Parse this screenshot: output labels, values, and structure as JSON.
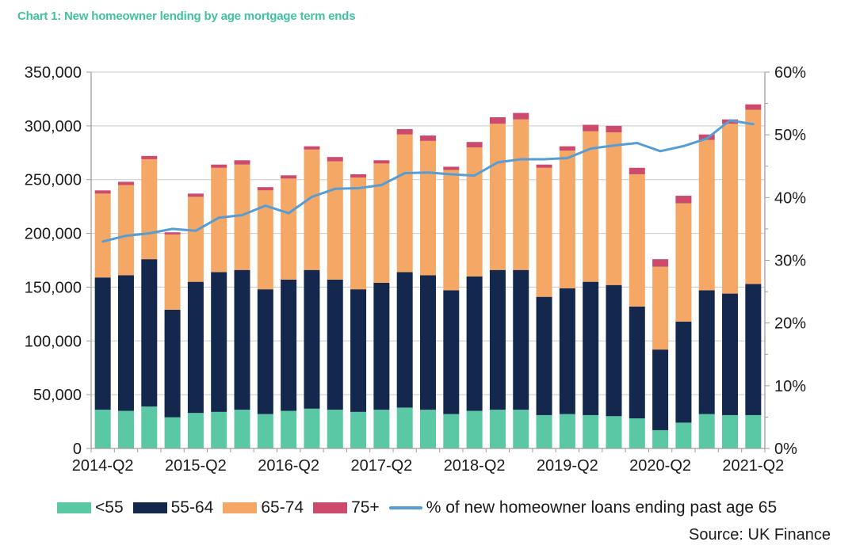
{
  "page": {
    "title": "Chart 1: New homeowner lending by age mortgage term ends",
    "source": "Source: UK Finance"
  },
  "colors": {
    "title_text": "#3fc2a2",
    "axis_text": "#1b1b1b",
    "grid_line": "#c9c9c9",
    "axis_line": "#9e9e9e"
  },
  "legend": {
    "items": [
      {
        "label": "<55"
      },
      {
        "label": "55-64"
      },
      {
        "label": "65-74"
      },
      {
        "label": "75+"
      },
      {
        "label": "% of new homeowner loans ending past age 65"
      }
    ]
  },
  "chart_data": {
    "type": "bar",
    "stacked": true,
    "line_overlay": true,
    "title": "Chart 1: New homeowner lending by age mortgage term ends",
    "xlabel": "",
    "ylabel": "",
    "grid": "horizontal",
    "legend_position": "bottom",
    "categories": [
      "2014-Q2",
      "2014-Q3",
      "2014-Q4",
      "2015-Q1",
      "2015-Q2",
      "2015-Q3",
      "2015-Q4",
      "2016-Q1",
      "2016-Q2",
      "2016-Q3",
      "2016-Q4",
      "2017-Q1",
      "2017-Q2",
      "2017-Q3",
      "2017-Q4",
      "2018-Q1",
      "2018-Q2",
      "2018-Q3",
      "2018-Q4",
      "2019-Q1",
      "2019-Q2",
      "2019-Q3",
      "2019-Q4",
      "2020-Q1",
      "2020-Q2",
      "2020-Q3",
      "2020-Q4",
      "2021-Q1",
      "2021-Q2"
    ],
    "series": [
      {
        "name": "<55",
        "type": "bar",
        "color": "#5bc8a5",
        "values": [
          36000,
          35000,
          39000,
          29000,
          33000,
          34000,
          36000,
          32000,
          35000,
          37000,
          36000,
          34000,
          36000,
          38000,
          36000,
          32000,
          35000,
          36000,
          36000,
          31000,
          32000,
          31000,
          30000,
          28000,
          17000,
          24000,
          32000,
          31000,
          31000
        ]
      },
      {
        "name": "55-64",
        "type": "bar",
        "color": "#14274d",
        "values": [
          123000,
          126000,
          137000,
          100000,
          122000,
          130000,
          130000,
          116000,
          122000,
          129000,
          121000,
          114000,
          118000,
          126000,
          125000,
          115000,
          125000,
          130000,
          130000,
          110000,
          117000,
          124000,
          122000,
          104000,
          75000,
          94000,
          115000,
          113000,
          122000
        ]
      },
      {
        "name": "65-74",
        "type": "bar",
        "color": "#f5a766",
        "values": [
          78000,
          84000,
          93000,
          70000,
          79000,
          97000,
          98000,
          92000,
          94000,
          112000,
          110000,
          104000,
          111000,
          128000,
          125000,
          112000,
          120000,
          136000,
          140000,
          120000,
          128000,
          140000,
          142000,
          123000,
          77000,
          110000,
          140000,
          158000,
          162000
        ]
      },
      {
        "name": "75+",
        "type": "bar",
        "color": "#cc4a6b",
        "values": [
          3000,
          3000,
          3000,
          2000,
          3000,
          3000,
          4000,
          3000,
          3000,
          3000,
          4000,
          3000,
          3000,
          5000,
          5000,
          3000,
          5000,
          6000,
          6000,
          3000,
          4000,
          6000,
          6000,
          6000,
          7000,
          7000,
          5000,
          4000,
          5000
        ]
      },
      {
        "name": "% of new homeowner loans ending past age 65",
        "type": "line",
        "axis": "right",
        "color": "#569dd4",
        "values": [
          33.0,
          33.9,
          34.3,
          35.0,
          34.7,
          36.8,
          37.2,
          38.7,
          37.5,
          40.1,
          41.4,
          41.5,
          42.0,
          43.9,
          44.0,
          43.7,
          43.5,
          45.6,
          46.1,
          46.1,
          46.3,
          47.8,
          48.3,
          48.7,
          47.4,
          48.2,
          49.4,
          52.3,
          51.7
        ]
      }
    ],
    "left_axis": {
      "min": 0,
      "max": 350000,
      "step": 50000,
      "tick_labels": [
        "0",
        "50,000",
        "100,000",
        "150,000",
        "200,000",
        "250,000",
        "300,000",
        "350,000"
      ]
    },
    "right_axis": {
      "min": 0,
      "max": 60,
      "step": 10,
      "minor_step": 5,
      "tick_labels": [
        "0%",
        "10%",
        "20%",
        "30%",
        "40%",
        "50%",
        "60%"
      ]
    },
    "x_axis": {
      "label_every": 4,
      "shown_labels": [
        "2014-Q2",
        "2015-Q2",
        "2016-Q2",
        "2017-Q2",
        "2018-Q2",
        "2019-Q2",
        "2020-Q2",
        "2021-Q2"
      ]
    }
  }
}
